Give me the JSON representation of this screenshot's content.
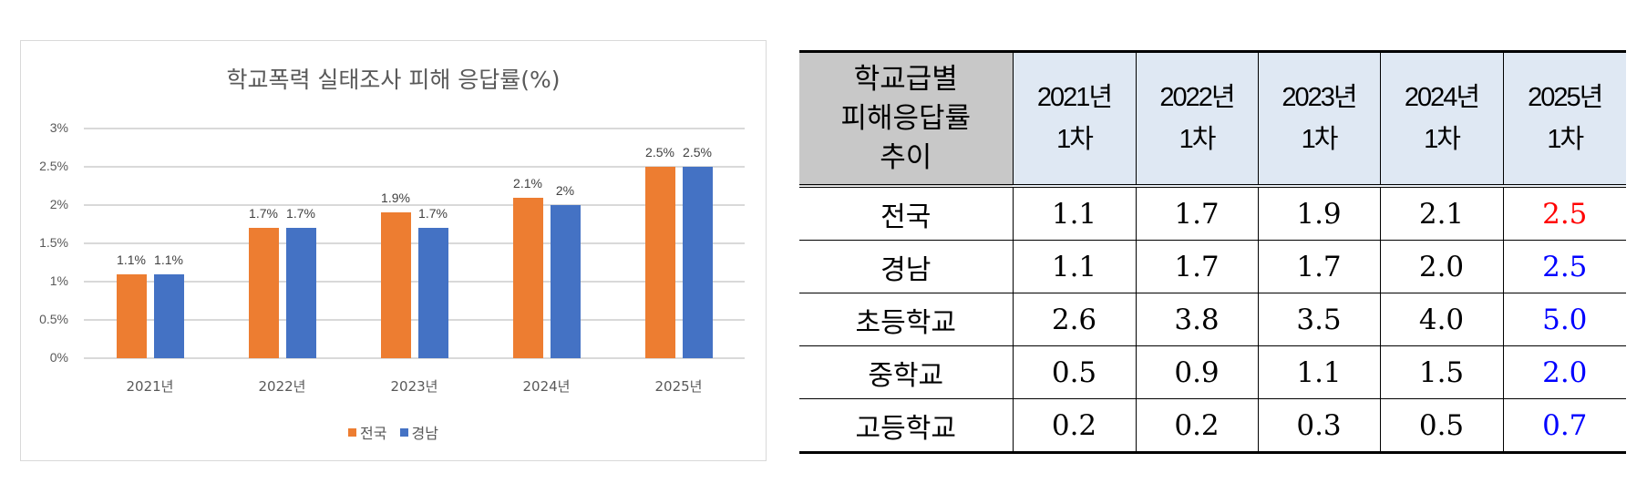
{
  "chart_data": {
    "type": "bar",
    "title": "학교폭력 실태조사 피해 응답률(%)",
    "xlabel": "",
    "ylabel": "",
    "categories": [
      "2021년",
      "2022년",
      "2023년",
      "2024년",
      "2025년"
    ],
    "series": [
      {
        "name": "전국",
        "color": "#ED7D31",
        "values": [
          1.1,
          1.7,
          1.9,
          2.1,
          2.5
        ],
        "labels": [
          "1.1%",
          "1.7%",
          "1.9%",
          "2.1%",
          "2.5%"
        ]
      },
      {
        "name": "경남",
        "color": "#4472C4",
        "values": [
          1.1,
          1.7,
          1.7,
          2.0,
          2.5
        ],
        "labels": [
          "1.1%",
          "1.7%",
          "1.7%",
          "2%",
          "2.5%"
        ]
      }
    ],
    "ylim": [
      0,
      3
    ],
    "yticks": [
      "0%",
      "0.5%",
      "1%",
      "1.5%",
      "2%",
      "2.5%",
      "3%"
    ],
    "grid": true,
    "legend_position": "bottom"
  },
  "table": {
    "corner_header": [
      "학교급별",
      "피해응답률",
      "추이"
    ],
    "columns": [
      {
        "year": "2021년",
        "round": "1차"
      },
      {
        "year": "2022년",
        "round": "1차"
      },
      {
        "year": "2023년",
        "round": "1차"
      },
      {
        "year": "2024년",
        "round": "1차"
      },
      {
        "year": "2025년",
        "round": "1차"
      }
    ],
    "rows": [
      {
        "label": "전국",
        "values": [
          "1.1",
          "1.7",
          "1.9",
          "2.1",
          "2.5"
        ],
        "highlight": "red"
      },
      {
        "label": "경남",
        "values": [
          "1.1",
          "1.7",
          "1.7",
          "2.0",
          "2.5"
        ],
        "highlight": "blue"
      },
      {
        "label": "초등학교",
        "values": [
          "2.6",
          "3.8",
          "3.5",
          "4.0",
          "5.0"
        ],
        "highlight": "blue"
      },
      {
        "label": "중학교",
        "values": [
          "0.5",
          "0.9",
          "1.1",
          "1.5",
          "2.0"
        ],
        "highlight": "blue"
      },
      {
        "label": "고등학교",
        "values": [
          "0.2",
          "0.2",
          "0.3",
          "0.5",
          "0.7"
        ],
        "highlight": "blue"
      }
    ],
    "colors": {
      "header_grey": "#C8C8C8",
      "header_blue": "#DFE8F3",
      "red": "#FF0000",
      "blue": "#0000FF"
    }
  }
}
